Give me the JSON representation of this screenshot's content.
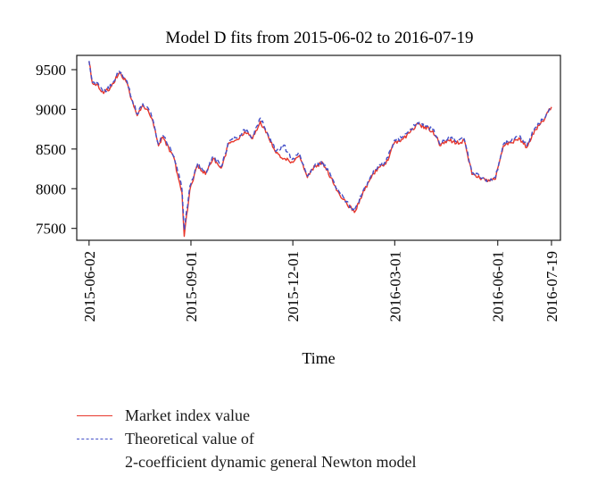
{
  "chart_data": {
    "type": "line",
    "title": "Model D fits from 2015-06-02 to 2016-07-19",
    "xlabel": "Time",
    "ylabel": "",
    "x_tick_labels": [
      "2015-06-02",
      "2015-09-01",
      "2015-12-01",
      "2016-03-01",
      "2016-06-01",
      "2016-07-19"
    ],
    "y_ticks": [
      7500,
      8000,
      8500,
      9000,
      9500
    ],
    "ylim": [
      7350,
      9680
    ],
    "xlim": [
      "2015-05-22",
      "2016-07-27"
    ],
    "grid": false,
    "legend_position": "bottom",
    "x": [
      "2015-06-02",
      "2015-06-05",
      "2015-06-10",
      "2015-06-15",
      "2015-06-22",
      "2015-06-29",
      "2015-07-06",
      "2015-07-10",
      "2015-07-15",
      "2015-07-20",
      "2015-07-24",
      "2015-07-29",
      "2015-08-03",
      "2015-08-07",
      "2015-08-12",
      "2015-08-17",
      "2015-08-21",
      "2015-08-24",
      "2015-08-26",
      "2015-08-31",
      "2015-09-07",
      "2015-09-14",
      "2015-09-21",
      "2015-09-28",
      "2015-10-05",
      "2015-10-12",
      "2015-10-19",
      "2015-10-26",
      "2015-11-02",
      "2015-11-09",
      "2015-11-16",
      "2015-11-23",
      "2015-11-30",
      "2015-12-07",
      "2015-12-14",
      "2015-12-21",
      "2015-12-28",
      "2016-01-04",
      "2016-01-11",
      "2016-01-18",
      "2016-01-25",
      "2016-02-01",
      "2016-02-08",
      "2016-02-15",
      "2016-02-22",
      "2016-02-29",
      "2016-03-07",
      "2016-03-14",
      "2016-03-21",
      "2016-03-28",
      "2016-04-04",
      "2016-04-11",
      "2016-04-18",
      "2016-04-25",
      "2016-05-02",
      "2016-05-09",
      "2016-05-16",
      "2016-05-23",
      "2016-05-30",
      "2016-06-06",
      "2016-06-13",
      "2016-06-20",
      "2016-06-27",
      "2016-07-04",
      "2016-07-11",
      "2016-07-19"
    ],
    "series": [
      {
        "name": "Market index value",
        "color": "#e8372c",
        "dash": "solid",
        "values": [
          9600,
          9330,
          9310,
          9200,
          9290,
          9460,
          9330,
          9120,
          8920,
          9050,
          9000,
          8850,
          8540,
          8650,
          8520,
          8380,
          8120,
          7950,
          7400,
          7980,
          8300,
          8180,
          8380,
          8260,
          8580,
          8620,
          8720,
          8630,
          8850,
          8660,
          8450,
          8380,
          8340,
          8420,
          8140,
          8290,
          8320,
          8140,
          7950,
          7820,
          7700,
          7920,
          8120,
          8260,
          8310,
          8560,
          8620,
          8700,
          8820,
          8780,
          8730,
          8540,
          8610,
          8570,
          8610,
          8180,
          8130,
          8090,
          8120,
          8540,
          8580,
          8640,
          8520,
          8740,
          8850,
          9030
        ]
      },
      {
        "name": "Theoretical value of 2-coefficient dynamic general Newton model",
        "color": "#4450c8",
        "dash": "dashed",
        "values": [
          9610,
          9340,
          9330,
          9220,
          9300,
          9480,
          9350,
          9140,
          8940,
          9070,
          9030,
          8870,
          8560,
          8670,
          8540,
          8400,
          8200,
          7990,
          7480,
          8030,
          8320,
          8200,
          8400,
          8280,
          8600,
          8640,
          8740,
          8650,
          8890,
          8680,
          8470,
          8550,
          8360,
          8440,
          8160,
          8310,
          8340,
          8160,
          7970,
          7840,
          7720,
          7950,
          8140,
          8280,
          8330,
          8590,
          8640,
          8720,
          8840,
          8800,
          8750,
          8560,
          8650,
          8590,
          8630,
          8200,
          8150,
          8110,
          8140,
          8560,
          8600,
          8660,
          8540,
          8760,
          8870,
          9040
        ]
      }
    ]
  },
  "legend": {
    "entries": [
      {
        "label": "Market index value"
      },
      {
        "label": "Theoretical value of",
        "label_cont": "2-coefficient dynamic general Newton model"
      }
    ]
  }
}
